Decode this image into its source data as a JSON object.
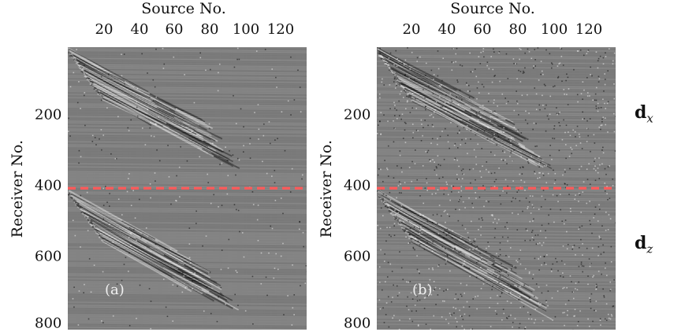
{
  "panels": [
    {
      "tag": "(a)",
      "xtitle": "Source No.",
      "ylabel": "Receiver No.",
      "xticks": [
        "20",
        "40",
        "60",
        "80",
        "100",
        "120"
      ],
      "yticks": [
        "200",
        "400",
        "600",
        "800"
      ],
      "noise_level": 0.12
    },
    {
      "tag": "(b)",
      "xtitle": "Source No.",
      "ylabel": "Receiver No.",
      "xticks": [
        "20",
        "40",
        "60",
        "80",
        "100",
        "120"
      ],
      "yticks": [
        "200",
        "400",
        "600",
        "800"
      ],
      "noise_level": 0.5
    }
  ],
  "divider": {
    "receiver": 400,
    "color": "#ff5a5a"
  },
  "side_labels": {
    "dx_base": "d",
    "dx_sub": "x",
    "dz_base": "d",
    "dz_sub": "z"
  },
  "axes": {
    "x_range": [
      1,
      135
    ],
    "y_range": [
      1,
      800
    ]
  }
}
